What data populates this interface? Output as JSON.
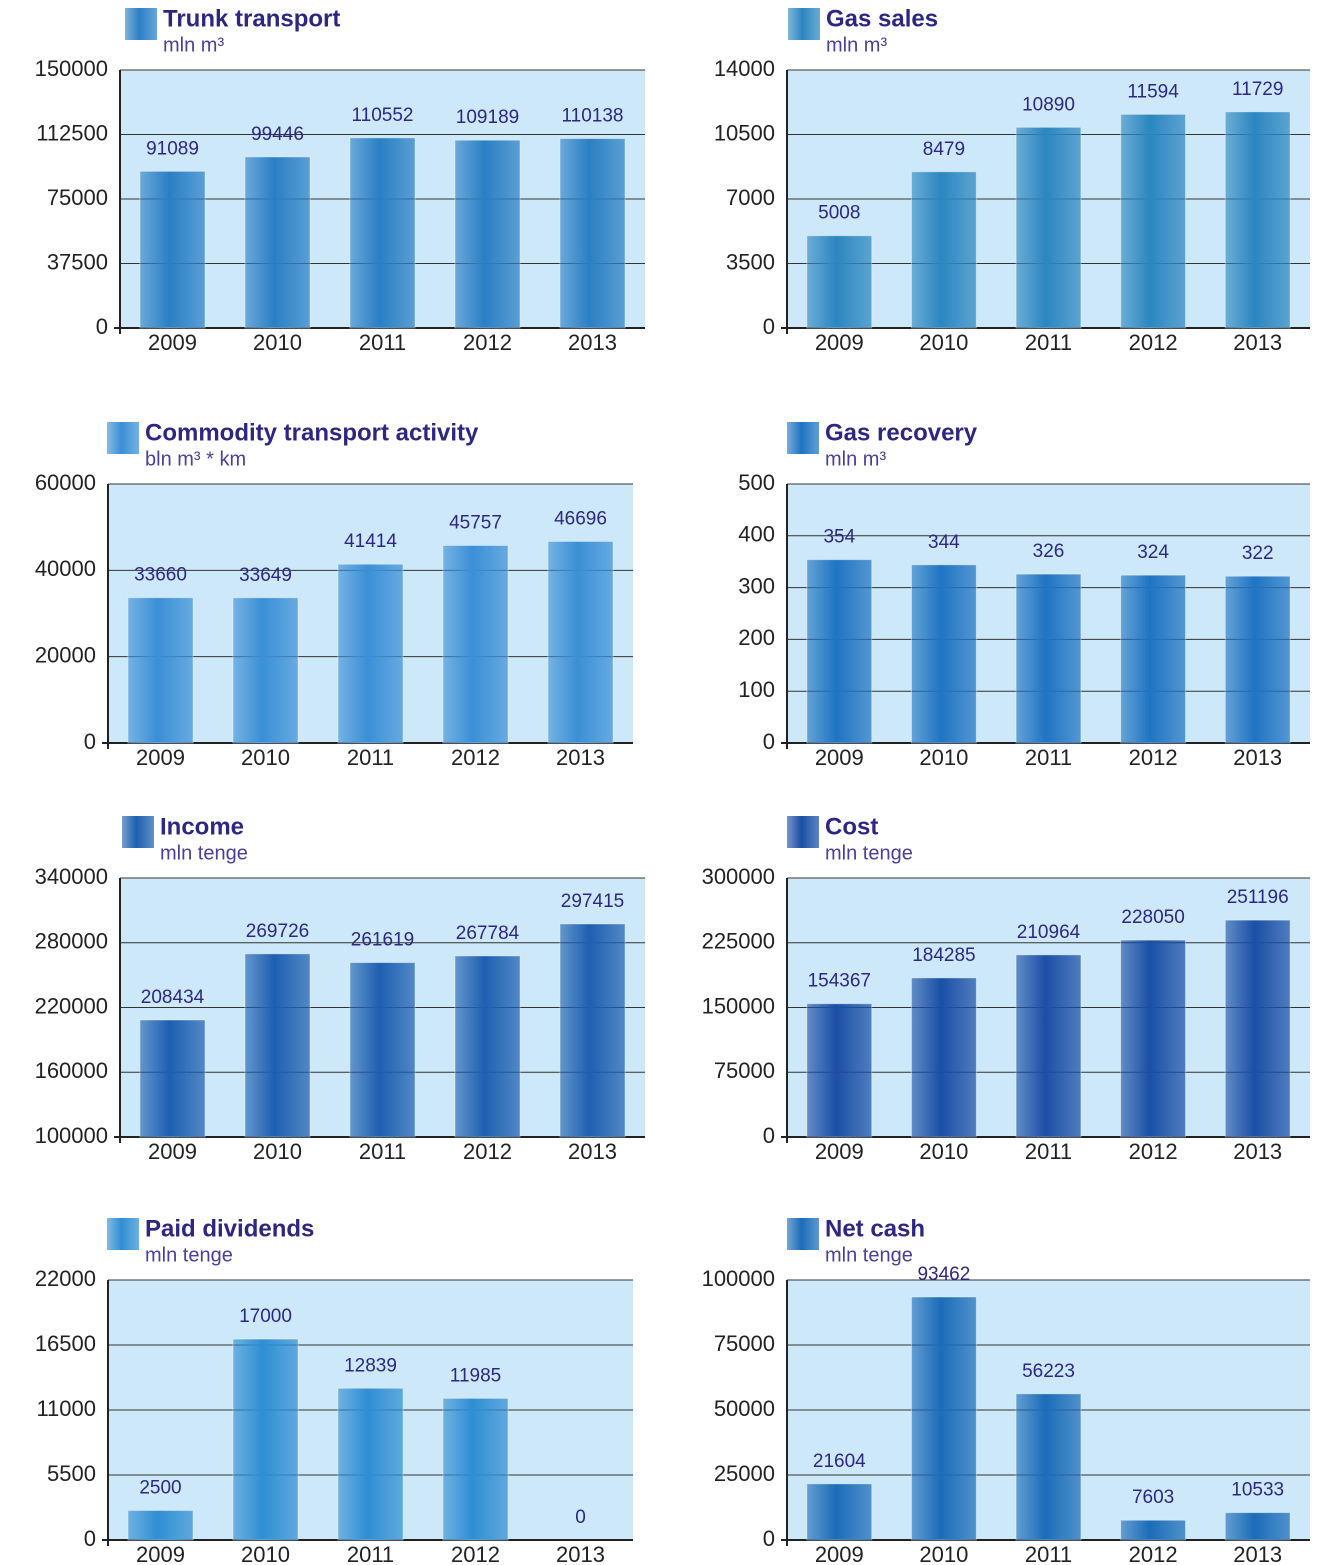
{
  "chart_data": [
    {
      "type": "bar",
      "title": "Trunk transport",
      "subtitle": "mln m³",
      "categories": [
        "2009",
        "2010",
        "2011",
        "2012",
        "2013"
      ],
      "values": [
        91089,
        99446,
        110552,
        109189,
        110138
      ],
      "color": "#2a7fc4",
      "ylim": [
        0,
        150000
      ],
      "yticks": [
        0,
        37500,
        75000,
        112500,
        150000
      ],
      "grid": true
    },
    {
      "type": "bar",
      "title": "Gas sales",
      "subtitle": "mln m³",
      "categories": [
        "2009",
        "2010",
        "2011",
        "2012",
        "2013"
      ],
      "values": [
        5008,
        8479,
        10890,
        11594,
        11729
      ],
      "color": "#2b86c0",
      "ylim": [
        0,
        14000
      ],
      "yticks": [
        0,
        3500,
        7000,
        10500,
        14000
      ],
      "grid": true
    },
    {
      "type": "bar",
      "title": "Commodity transport activity",
      "subtitle": "bln m³ * km",
      "categories": [
        "2009",
        "2010",
        "2011",
        "2012",
        "2013"
      ],
      "values": [
        33660,
        33649,
        41414,
        45757,
        46696
      ],
      "color": "#3a8fd6",
      "ylim": [
        0,
        60000
      ],
      "yticks": [
        0,
        20000,
        40000,
        60000
      ],
      "grid": true
    },
    {
      "type": "bar",
      "title": "Gas recovery",
      "subtitle": "mln m³",
      "categories": [
        "2009",
        "2010",
        "2011",
        "2012",
        "2013"
      ],
      "values": [
        354,
        344,
        326,
        324,
        322
      ],
      "color": "#1f74c2",
      "ylim": [
        0,
        500
      ],
      "yticks": [
        0,
        100,
        200,
        300,
        400,
        500
      ],
      "grid": true
    },
    {
      "type": "bar",
      "title": "Income",
      "subtitle": "mln tenge",
      "categories": [
        "2009",
        "2010",
        "2011",
        "2012",
        "2013"
      ],
      "values": [
        208434,
        269726,
        261619,
        267784,
        297415
      ],
      "color": "#1d5fb0",
      "ylim": [
        100000,
        340000
      ],
      "yticks": [
        100000,
        160000,
        220000,
        280000,
        340000
      ],
      "grid": true
    },
    {
      "type": "bar",
      "title": "Cost",
      "subtitle": "mln tenge",
      "categories": [
        "2009",
        "2010",
        "2011",
        "2012",
        "2013"
      ],
      "values": [
        154367,
        184285,
        210964,
        228050,
        251196
      ],
      "color": "#1a4fa6",
      "ylim": [
        0,
        300000
      ],
      "yticks": [
        0,
        75000,
        150000,
        225000,
        300000
      ],
      "grid": true
    },
    {
      "type": "bar",
      "title": "Paid dividends",
      "subtitle": "mln tenge",
      "categories": [
        "2009",
        "2010",
        "2011",
        "2012",
        "2013"
      ],
      "values": [
        2500,
        17000,
        12839,
        11985,
        0
      ],
      "color": "#2f8ed3",
      "ylim": [
        0,
        22000
      ],
      "yticks": [
        0,
        5500,
        11000,
        16500,
        22000
      ],
      "grid": true
    },
    {
      "type": "bar",
      "title": "Net cash",
      "subtitle": "mln tenge",
      "categories": [
        "2009",
        "2010",
        "2011",
        "2012",
        "2013"
      ],
      "values": [
        21604,
        93462,
        56223,
        7603,
        10533
      ],
      "color": "#1b6cb8",
      "ylim": [
        0,
        100000
      ],
      "yticks": [
        0,
        25000,
        50000,
        75000,
        100000
      ],
      "grid": true
    }
  ]
}
